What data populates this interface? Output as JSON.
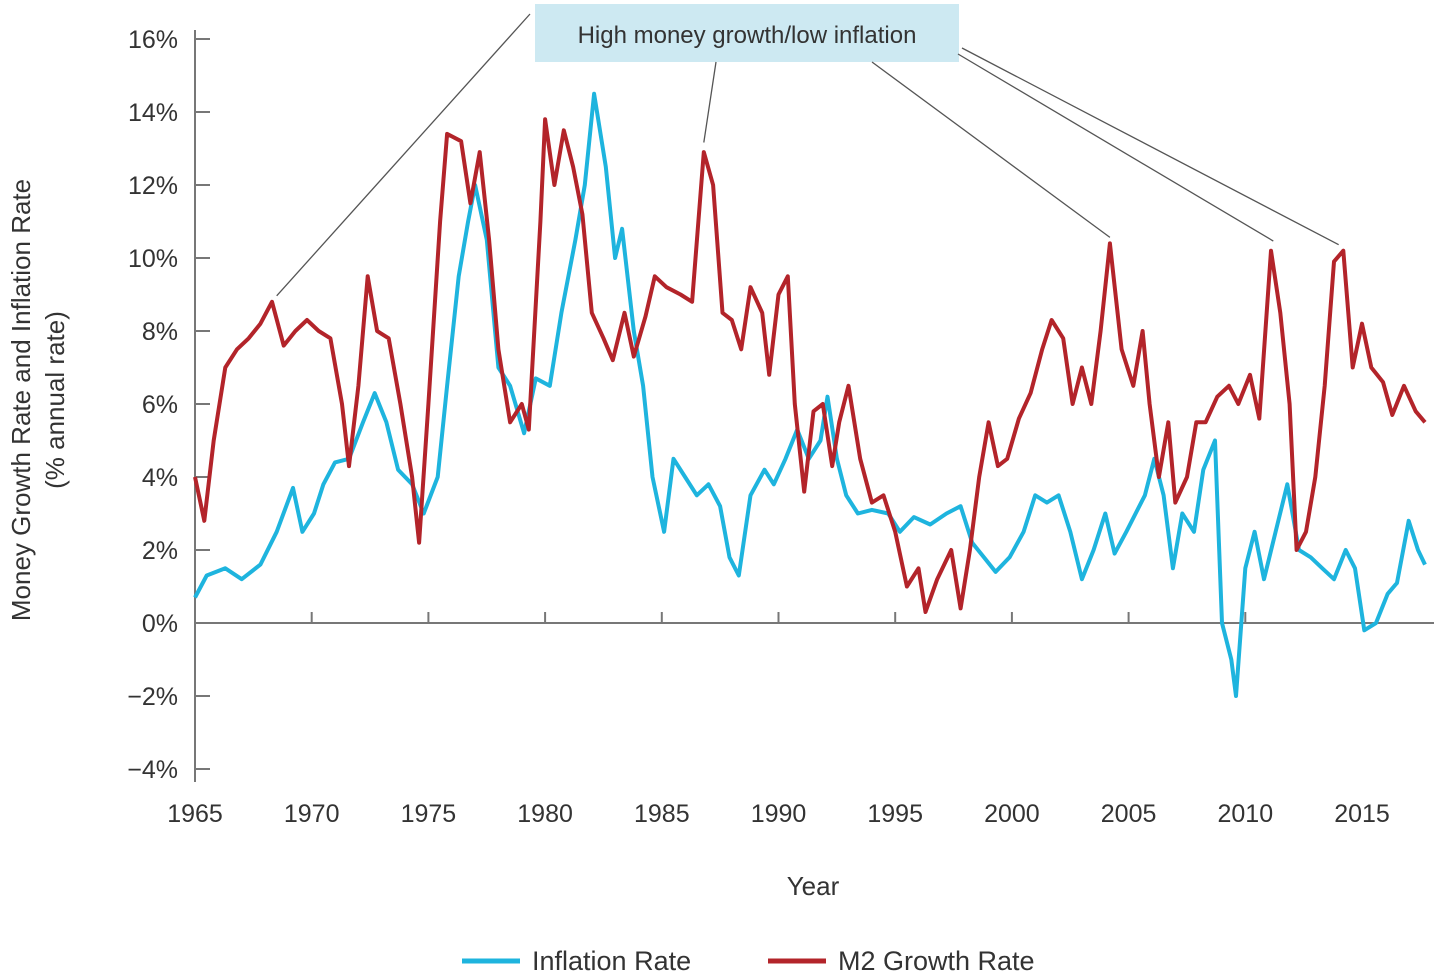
{
  "chart_data": {
    "type": "line",
    "title": "",
    "xlabel": "Year",
    "ylabel": "Money Growth Rate and Inflation Rate",
    "ylabel_sub": "(% annual rate)",
    "xlim": [
      1965,
      2017.8
    ],
    "ylim": [
      -4,
      16
    ],
    "x_ticks": [
      1965,
      1970,
      1975,
      1980,
      1985,
      1990,
      1995,
      2000,
      2005,
      2010,
      2015
    ],
    "y_ticks": [
      -4,
      -2,
      0,
      2,
      4,
      6,
      8,
      10,
      12,
      14,
      16
    ],
    "y_tick_labels": [
      "−4%",
      "−2%",
      "0%",
      "2%",
      "4%",
      "6%",
      "8%",
      "10%",
      "12%",
      "14%",
      "16%"
    ],
    "grid": false,
    "legend_position": "bottom",
    "colors": {
      "inflation": "#1eb4de",
      "m2": "#b3242a",
      "annotation_bg": "#cde9f2",
      "axis": "#777777"
    },
    "annotation": {
      "text": "High money growth/low inflation",
      "targets": [
        [
          1968.5,
          8.8
        ],
        [
          1986.8,
          13.0
        ],
        [
          2004.2,
          10.4
        ],
        [
          2011.2,
          10.3
        ],
        [
          2014.0,
          10.2
        ]
      ]
    },
    "series": [
      {
        "name": "Inflation Rate",
        "color": "#1eb4de",
        "x": [
          1965.0,
          1965.5,
          1966.3,
          1967.0,
          1967.8,
          1968.5,
          1969.2,
          1969.6,
          1970.1,
          1970.5,
          1971.0,
          1971.6,
          1972.2,
          1972.7,
          1973.2,
          1973.7,
          1974.3,
          1974.8,
          1975.4,
          1975.8,
          1976.3,
          1976.7,
          1977.0,
          1977.5,
          1978.0,
          1978.5,
          1979.1,
          1979.6,
          1980.2,
          1980.7,
          1981.3,
          1981.7,
          1982.1,
          1982.6,
          1983.0,
          1983.3,
          1983.8,
          1984.2,
          1984.6,
          1985.1,
          1985.5,
          1986.0,
          1986.5,
          1987.0,
          1987.5,
          1987.9,
          1988.3,
          1988.8,
          1989.4,
          1989.8,
          1990.3,
          1990.8,
          1991.3,
          1991.8,
          1992.1,
          1992.5,
          1992.9,
          1993.4,
          1994.0,
          1994.7,
          1995.2,
          1995.8,
          1996.5,
          1997.2,
          1997.8,
          1998.3,
          1998.8,
          1999.3,
          1999.9,
          2000.5,
          2001.0,
          2001.5,
          2002.0,
          2002.5,
          2003.0,
          2003.5,
          2004.0,
          2004.4,
          2004.9,
          2005.3,
          2005.7,
          2006.1,
          2006.5,
          2006.9,
          2007.3,
          2007.8,
          2008.2,
          2008.7,
          2009.0,
          2009.4,
          2009.6,
          2010.0,
          2010.4,
          2010.8,
          2011.3,
          2011.8,
          2012.3,
          2012.8,
          2013.3,
          2013.8,
          2014.3,
          2014.7,
          2015.1,
          2015.6,
          2016.1,
          2016.5,
          2017.0,
          2017.4,
          2017.7
        ],
        "values": [
          0.7,
          1.3,
          1.5,
          1.2,
          1.6,
          2.5,
          3.7,
          2.5,
          3.0,
          3.8,
          4.4,
          4.5,
          5.5,
          6.3,
          5.5,
          4.2,
          3.8,
          3.0,
          4.0,
          6.5,
          9.5,
          11.0,
          12.0,
          10.5,
          7.0,
          6.5,
          5.2,
          6.7,
          6.5,
          8.5,
          10.5,
          12.0,
          14.5,
          12.5,
          10.0,
          10.8,
          8.0,
          6.5,
          4.0,
          2.5,
          4.5,
          4.0,
          3.5,
          3.8,
          3.2,
          1.8,
          1.3,
          3.5,
          4.2,
          3.8,
          4.5,
          5.3,
          4.5,
          5.0,
          6.2,
          4.5,
          3.5,
          3.0,
          3.1,
          3.0,
          2.5,
          2.9,
          2.7,
          3.0,
          3.2,
          2.2,
          1.8,
          1.4,
          1.8,
          2.5,
          3.5,
          3.3,
          3.5,
          2.5,
          1.2,
          2.0,
          3.0,
          1.9,
          2.5,
          3.0,
          3.5,
          4.5,
          3.5,
          1.5,
          3.0,
          2.5,
          4.2,
          5.0,
          0.0,
          -1.0,
          -2.0,
          1.5,
          2.5,
          1.2,
          2.5,
          3.8,
          2.0,
          1.8,
          1.5,
          1.2,
          2.0,
          1.5,
          -0.2,
          0.0,
          0.8,
          1.1,
          2.8,
          2.0,
          1.6
        ]
      },
      {
        "name": "M2 Growth Rate",
        "color": "#b3242a",
        "x": [
          1965.0,
          1965.4,
          1965.8,
          1966.3,
          1966.8,
          1967.3,
          1967.8,
          1968.3,
          1968.8,
          1969.3,
          1969.8,
          1970.3,
          1970.8,
          1971.3,
          1971.6,
          1972.0,
          1972.4,
          1972.8,
          1973.3,
          1973.8,
          1974.3,
          1974.6,
          1975.0,
          1975.5,
          1975.8,
          1976.4,
          1976.8,
          1977.2,
          1977.6,
          1978.0,
          1978.5,
          1979.0,
          1979.3,
          1979.8,
          1980.0,
          1980.4,
          1980.8,
          1981.2,
          1981.6,
          1982.0,
          1982.5,
          1982.9,
          1983.4,
          1983.8,
          1984.3,
          1984.7,
          1985.2,
          1985.8,
          1986.3,
          1986.8,
          1987.2,
          1987.6,
          1988.0,
          1988.4,
          1988.8,
          1989.3,
          1989.6,
          1990.0,
          1990.4,
          1990.7,
          1991.1,
          1991.5,
          1991.9,
          1992.3,
          1992.6,
          1993.0,
          1993.5,
          1994.0,
          1994.5,
          1995.0,
          1995.5,
          1996.0,
          1996.3,
          1996.8,
          1997.4,
          1997.8,
          1998.2,
          1998.6,
          1999.0,
          1999.4,
          1999.8,
          2000.3,
          2000.8,
          2001.3,
          2001.7,
          2002.2,
          2002.6,
          2003.0,
          2003.4,
          2003.8,
          2004.2,
          2004.7,
          2005.2,
          2005.6,
          2005.9,
          2006.3,
          2006.7,
          2007.0,
          2007.5,
          2007.9,
          2008.3,
          2008.8,
          2009.3,
          2009.7,
          2010.2,
          2010.6,
          2011.1,
          2011.5,
          2011.9,
          2012.2,
          2012.6,
          2013.0,
          2013.4,
          2013.8,
          2014.2,
          2014.6,
          2015.0,
          2015.4,
          2015.9,
          2016.3,
          2016.8,
          2017.3,
          2017.7
        ],
        "values": [
          4.0,
          2.8,
          5.0,
          7.0,
          7.5,
          7.8,
          8.2,
          8.8,
          7.6,
          8.0,
          8.3,
          8.0,
          7.8,
          6.0,
          4.3,
          6.5,
          9.5,
          8.0,
          7.8,
          6.0,
          4.0,
          2.2,
          6.0,
          11.0,
          13.4,
          13.2,
          11.5,
          12.9,
          10.5,
          7.5,
          5.5,
          6.0,
          5.3,
          11.0,
          13.8,
          12.0,
          13.5,
          12.5,
          11.2,
          8.5,
          7.8,
          7.2,
          8.5,
          7.3,
          8.4,
          9.5,
          9.2,
          9.0,
          8.8,
          12.9,
          12.0,
          8.5,
          8.3,
          7.5,
          9.2,
          8.5,
          6.8,
          9.0,
          9.5,
          6.0,
          3.6,
          5.8,
          6.0,
          4.3,
          5.5,
          6.5,
          4.5,
          3.3,
          3.5,
          2.5,
          1.0,
          1.5,
          0.3,
          1.2,
          2.0,
          0.4,
          2.0,
          4.0,
          5.5,
          4.3,
          4.5,
          5.6,
          6.3,
          7.5,
          8.3,
          7.8,
          6.0,
          7.0,
          6.0,
          8.0,
          10.4,
          7.5,
          6.5,
          8.0,
          6.0,
          4.0,
          5.5,
          3.3,
          4.0,
          5.5,
          5.5,
          6.2,
          6.5,
          6.0,
          6.8,
          5.6,
          10.2,
          8.5,
          6.0,
          2.0,
          2.5,
          4.0,
          6.5,
          9.9,
          10.2,
          7.0,
          8.2,
          7.0,
          6.6,
          5.7,
          6.5,
          5.8,
          5.5
        ]
      }
    ]
  }
}
